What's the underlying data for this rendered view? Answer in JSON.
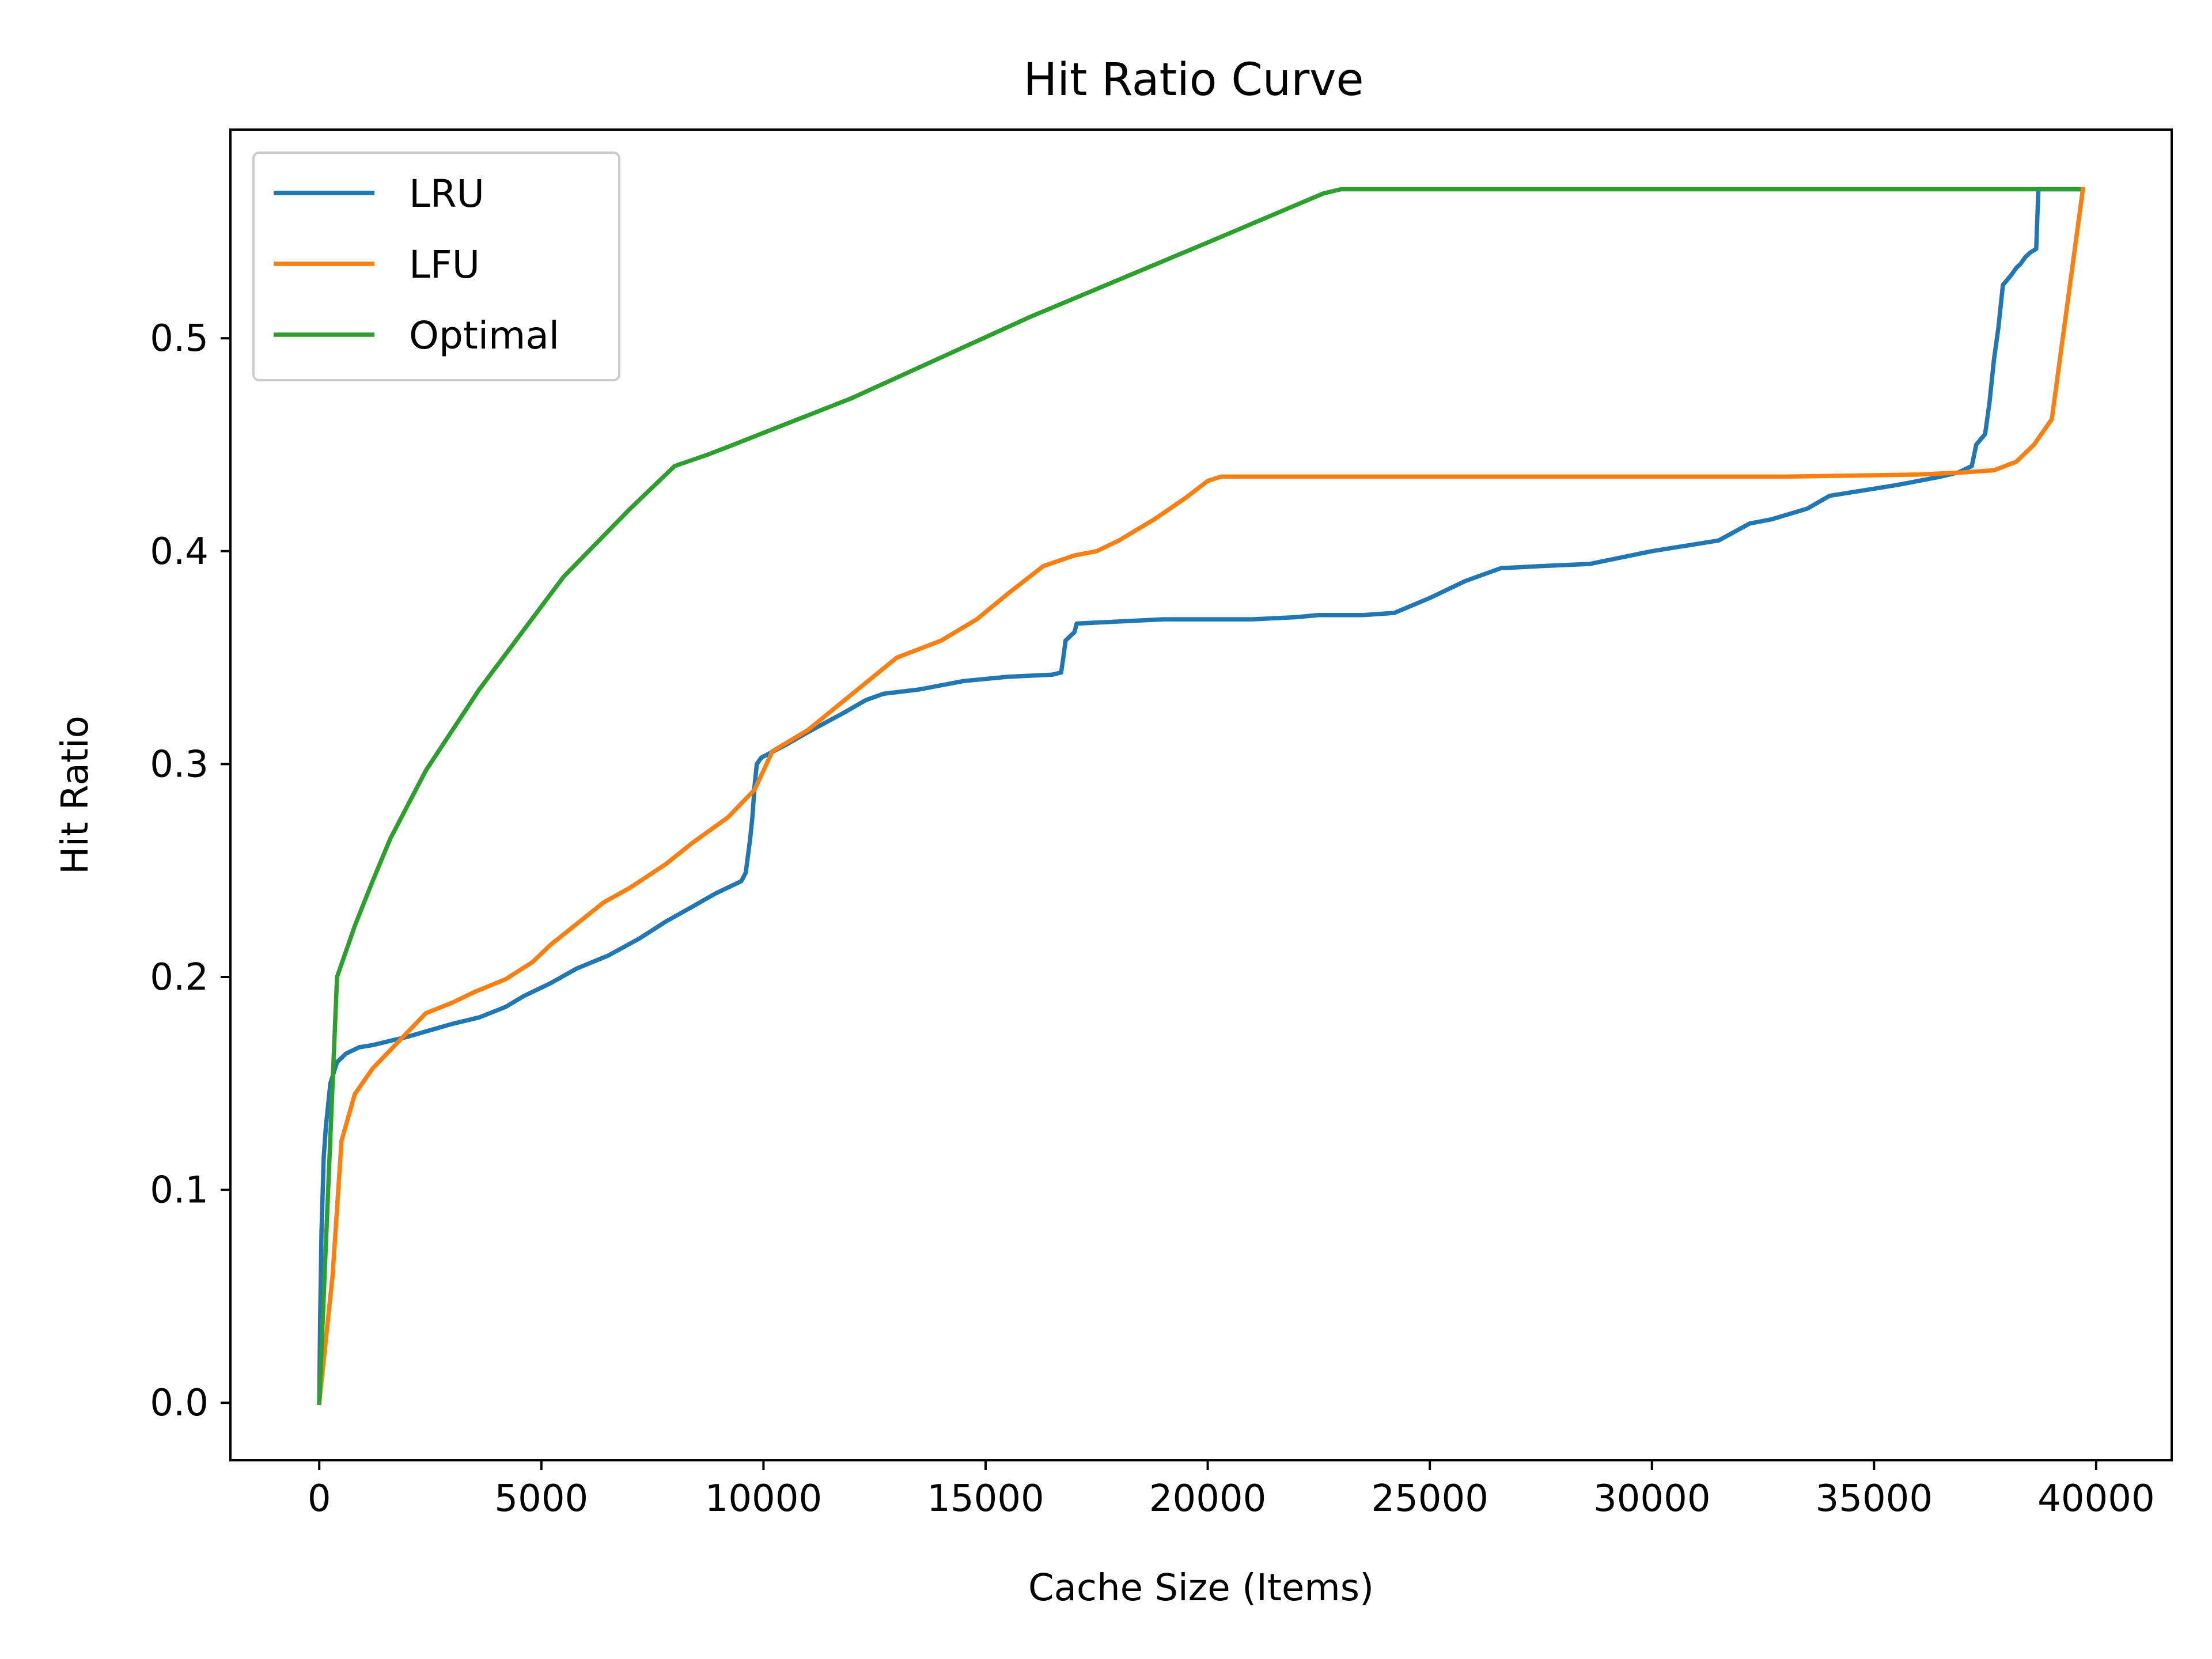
{
  "chart_data": {
    "type": "line",
    "title": "Hit Ratio Curve",
    "xlabel": "Cache Size (Items)",
    "ylabel": "Hit Ratio",
    "xlim": [
      -2000,
      41700
    ],
    "ylim": [
      -0.027,
      0.598
    ],
    "xticks": [
      0,
      5000,
      10000,
      15000,
      20000,
      25000,
      30000,
      35000,
      40000
    ],
    "xtick_labels": [
      "0",
      "5000",
      "10000",
      "15000",
      "20000",
      "25000",
      "30000",
      "35000",
      "40000"
    ],
    "yticks": [
      0.0,
      0.1,
      0.2,
      0.3,
      0.4,
      0.5
    ],
    "ytick_labels": [
      "0.0",
      "0.1",
      "0.2",
      "0.3",
      "0.4",
      "0.5"
    ],
    "grid": false,
    "legend_position": "upper left",
    "series": [
      {
        "name": "LRU",
        "color": "#1f77b4",
        "x": [
          0,
          20,
          50,
          100,
          150,
          250,
          400,
          600,
          900,
          1200,
          1600,
          2000,
          2500,
          3000,
          3600,
          4200,
          4600,
          5200,
          5800,
          6500,
          7200,
          7800,
          8400,
          8900,
          9200,
          9500,
          9600,
          9700,
          9750,
          9800,
          9850,
          9950,
          10500,
          11000,
          11800,
          12300,
          12700,
          13500,
          14500,
          15500,
          16500,
          16700,
          16750,
          16800,
          17000,
          17050,
          19000,
          21000,
          22000,
          22500,
          23500,
          24200,
          25000,
          25800,
          26600,
          27500,
          28600,
          30000,
          31500,
          32200,
          32700,
          33500,
          34000,
          34600,
          35500,
          36500,
          36900,
          37200,
          37300,
          37500,
          37600,
          37700,
          37800,
          37900,
          38100,
          38200,
          38300,
          38400,
          38500,
          38650,
          38700,
          39600
        ],
        "y": [
          0.0,
          0.04,
          0.08,
          0.115,
          0.13,
          0.15,
          0.16,
          0.164,
          0.167,
          0.168,
          0.17,
          0.172,
          0.175,
          0.178,
          0.181,
          0.186,
          0.191,
          0.197,
          0.204,
          0.21,
          0.218,
          0.226,
          0.233,
          0.239,
          0.242,
          0.245,
          0.249,
          0.265,
          0.275,
          0.29,
          0.3,
          0.303,
          0.309,
          0.315,
          0.324,
          0.33,
          0.333,
          0.335,
          0.339,
          0.341,
          0.342,
          0.343,
          0.35,
          0.358,
          0.362,
          0.366,
          0.368,
          0.368,
          0.369,
          0.37,
          0.37,
          0.371,
          0.378,
          0.386,
          0.392,
          0.393,
          0.394,
          0.4,
          0.405,
          0.413,
          0.415,
          0.42,
          0.426,
          0.428,
          0.431,
          0.435,
          0.437,
          0.44,
          0.45,
          0.455,
          0.47,
          0.49,
          0.505,
          0.525,
          0.53,
          0.533,
          0.535,
          0.538,
          0.54,
          0.542,
          0.57,
          0.57
        ]
      },
      {
        "name": "LFU",
        "color": "#ff7f0e",
        "x": [
          0,
          300,
          500,
          800,
          1200,
          1800,
          2400,
          3000,
          3500,
          4200,
          4800,
          5200,
          5800,
          6400,
          7000,
          7800,
          8400,
          9200,
          9800,
          10200,
          11000,
          12000,
          13000,
          14000,
          14800,
          15500,
          16300,
          17000,
          17500,
          18000,
          18800,
          19500,
          20000,
          20300,
          21000,
          22000,
          24000,
          27000,
          30000,
          33000,
          36000,
          37000,
          37700,
          38200,
          38600,
          39000,
          39700
        ],
        "y": [
          0.0,
          0.06,
          0.123,
          0.145,
          0.157,
          0.17,
          0.183,
          0.188,
          0.193,
          0.199,
          0.207,
          0.215,
          0.225,
          0.235,
          0.242,
          0.253,
          0.263,
          0.275,
          0.288,
          0.306,
          0.316,
          0.333,
          0.35,
          0.358,
          0.368,
          0.38,
          0.393,
          0.398,
          0.4,
          0.405,
          0.415,
          0.425,
          0.433,
          0.435,
          0.435,
          0.435,
          0.435,
          0.435,
          0.435,
          0.435,
          0.436,
          0.437,
          0.438,
          0.442,
          0.45,
          0.462,
          0.57
        ]
      },
      {
        "name": "Optimal",
        "color": "#2ca02c",
        "x": [
          0,
          400,
          800,
          1200,
          1600,
          2400,
          3600,
          5500,
          7000,
          8000,
          8700,
          9200,
          12000,
          16000,
          20000,
          22600,
          23000,
          39600
        ],
        "y": [
          0.0,
          0.2,
          0.224,
          0.245,
          0.265,
          0.297,
          0.335,
          0.388,
          0.42,
          0.44,
          0.445,
          0.449,
          0.472,
          0.51,
          0.545,
          0.568,
          0.57,
          0.57
        ]
      }
    ]
  }
}
